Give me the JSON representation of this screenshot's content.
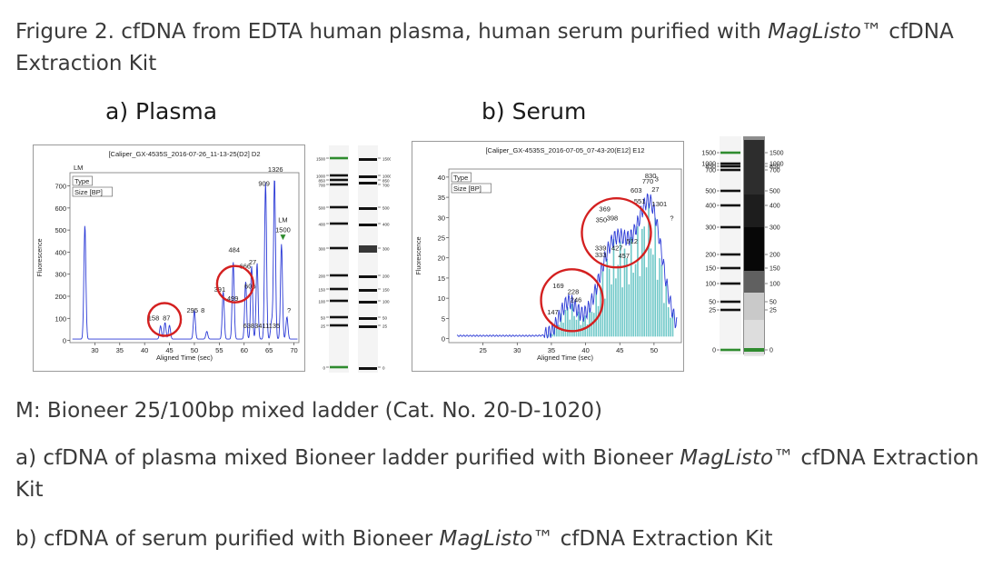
{
  "figure": {
    "title_pre": "Frigure 2. cfDNA from EDTA human plasma, human serum purified with ",
    "title_italic": "MagListo",
    "title_post": "™ cfDNA",
    "title_line2": "Extraction Kit",
    "caption_m": "M: Bioneer 25/100bp mixed ladder (Cat. No. 20-D-1020)",
    "caption_a_pre": "a) cfDNA of plasma mixed Bioneer ladder purified with Bioneer ",
    "caption_a_italic": "MagListo",
    "caption_a_post": "™ cfDNA Extraction",
    "caption_a_line2": "Kit",
    "caption_b_pre": "b) cfDNA of serum purified with Bioneer ",
    "caption_b_italic": "MagListo",
    "caption_b_post": "™ cfDNA Extraction Kit"
  },
  "panels": {
    "a": {
      "label": "a) Plasma"
    },
    "b": {
      "label": "b) Serum"
    }
  },
  "colors": {
    "trace": "#2b3ad6",
    "fill": "#6fc8c8",
    "circle": "#d42020",
    "ladder_marker": "#2e8b2e"
  },
  "chart_data": [
    {
      "type": "line",
      "panel": "a",
      "header": "[Caliper_GX-4535S_2016-07-26_11-13-25(D2] D2",
      "xlabel": "Aligned Time (sec)",
      "ylabel": "Fluorescence",
      "xlim": [
        25,
        71
      ],
      "ylim": [
        -10,
        760
      ],
      "xticks": [
        30,
        35,
        40,
        45,
        50,
        55,
        60,
        65,
        70
      ],
      "yticks": [
        0,
        100,
        200,
        300,
        400,
        500,
        600,
        700
      ],
      "legend": [
        "LM",
        "Type",
        "Size [BP]"
      ],
      "peaks": [
        {
          "x": 28.0,
          "y": 515
        },
        {
          "x": 43.2,
          "y": 60
        },
        {
          "x": 44.1,
          "y": 75
        },
        {
          "x": 45.0,
          "y": 62
        },
        {
          "x": 50.0,
          "y": 130
        },
        {
          "x": 52.5,
          "y": 35
        },
        {
          "x": 55.8,
          "y": 215
        },
        {
          "x": 57.8,
          "y": 350
        },
        {
          "x": 60.3,
          "y": 260
        },
        {
          "x": 61.5,
          "y": 330
        },
        {
          "x": 62.6,
          "y": 345
        },
        {
          "x": 64.3,
          "y": 710
        },
        {
          "x": 65.5,
          "y": 80
        },
        {
          "x": 66.1,
          "y": 730
        },
        {
          "x": 67.5,
          "y": 430
        },
        {
          "x": 68.6,
          "y": 100
        }
      ],
      "peak_labels": [
        {
          "text": "1326",
          "x": 66.3,
          "y": 765
        },
        {
          "text": "909",
          "x": 64.0,
          "y": 700
        },
        {
          "text": "LM",
          "x": 67.8,
          "y": 535
        },
        {
          "text": "1500",
          "x": 67.8,
          "y": 490
        },
        {
          "text": "484",
          "x": 58.0,
          "y": 400
        },
        {
          "text": "666",
          "x": 60.2,
          "y": 325
        },
        {
          "text": "27",
          "x": 61.7,
          "y": 345
        },
        {
          "text": "391",
          "x": 55.1,
          "y": 220
        },
        {
          "text": "606",
          "x": 61.2,
          "y": 235
        },
        {
          "text": "499",
          "x": 57.7,
          "y": 180
        },
        {
          "text": "295",
          "x": 49.6,
          "y": 125
        },
        {
          "text": "8",
          "x": 51.7,
          "y": 125
        },
        {
          "text": "158",
          "x": 41.8,
          "y": 90
        },
        {
          "text": "87",
          "x": 44.4,
          "y": 90
        },
        {
          "text": "6383411135",
          "x": 63.5,
          "y": 55
        },
        {
          "text": "?",
          "x": 69.0,
          "y": 125
        }
      ],
      "circles": [
        {
          "x": 44.0,
          "y": 95,
          "label": "small fragments"
        },
        {
          "x": 58.2,
          "y": 255,
          "label": "cfDNA"
        }
      ],
      "gel": {
        "ticks_left": [
          "1500",
          "1000",
          "850",
          "700",
          "500",
          "400",
          "300",
          "200",
          "150",
          "100",
          "50",
          "25",
          "0"
        ],
        "ticks_right": [
          "1500",
          "1000",
          "850",
          "700",
          "500",
          "400",
          "300",
          "200",
          "150",
          "100",
          "50",
          "25",
          "0"
        ]
      }
    },
    {
      "type": "line",
      "panel": "b",
      "header": "[Caliper_GX-4535S_2016-07-05_07-43-20(E12] E12",
      "xlabel": "Aligned Time (sec)",
      "ylabel": "Fluorescence",
      "xlim": [
        20,
        54
      ],
      "ylim": [
        -1,
        42
      ],
      "xticks": [
        25,
        30,
        35,
        40,
        45,
        50
      ],
      "yticks": [
        0,
        5,
        10,
        15,
        20,
        25,
        30,
        35,
        40
      ],
      "legend": [
        "Type",
        "Size [BP]"
      ],
      "peak_labels": [
        {
          "text": "830",
          "x": 49.5,
          "y": 39.8
        },
        {
          "text": "770",
          "x": 49.1,
          "y": 38.4
        },
        {
          "text": "3",
          "x": 50.4,
          "y": 39.0
        },
        {
          "text": "603",
          "x": 47.4,
          "y": 36.2
        },
        {
          "text": "27",
          "x": 50.2,
          "y": 36.4
        },
        {
          "text": "551",
          "x": 47.9,
          "y": 33.5
        },
        {
          "text": "1301",
          "x": 50.8,
          "y": 32.8
        },
        {
          "text": "369",
          "x": 42.8,
          "y": 31.5
        },
        {
          "text": "350",
          "x": 42.3,
          "y": 28.8
        },
        {
          "text": "398",
          "x": 43.9,
          "y": 29.3
        },
        {
          "text": "512",
          "x": 46.8,
          "y": 23.5
        },
        {
          "text": "339",
          "x": 42.2,
          "y": 21.9
        },
        {
          "text": "427",
          "x": 44.6,
          "y": 21.9
        },
        {
          "text": "333",
          "x": 42.2,
          "y": 20.2
        },
        {
          "text": "457",
          "x": 45.6,
          "y": 19.9
        },
        {
          "text": "169",
          "x": 36.0,
          "y": 12.5
        },
        {
          "text": "228",
          "x": 38.2,
          "y": 11.0
        },
        {
          "text": "246",
          "x": 38.6,
          "y": 9.0
        },
        {
          "text": "147",
          "x": 35.2,
          "y": 6.0
        },
        {
          "text": "?",
          "x": 52.6,
          "y": 29.3
        }
      ],
      "circles": [
        {
          "x": 38.0,
          "y": 9.5,
          "label": "small fragments"
        },
        {
          "x": 44.5,
          "y": 26.2,
          "label": "cfDNA"
        }
      ],
      "gel": {
        "ticks_left": [
          "1500",
          "1000",
          "850",
          "700",
          "500",
          "400",
          "300",
          "200",
          "150",
          "100",
          "50",
          "25",
          "0"
        ],
        "ticks_right": [
          "1500",
          "1000",
          "850",
          "700",
          "500",
          "400",
          "300",
          "200",
          "150",
          "100",
          "50",
          "25",
          "0"
        ]
      }
    }
  ]
}
